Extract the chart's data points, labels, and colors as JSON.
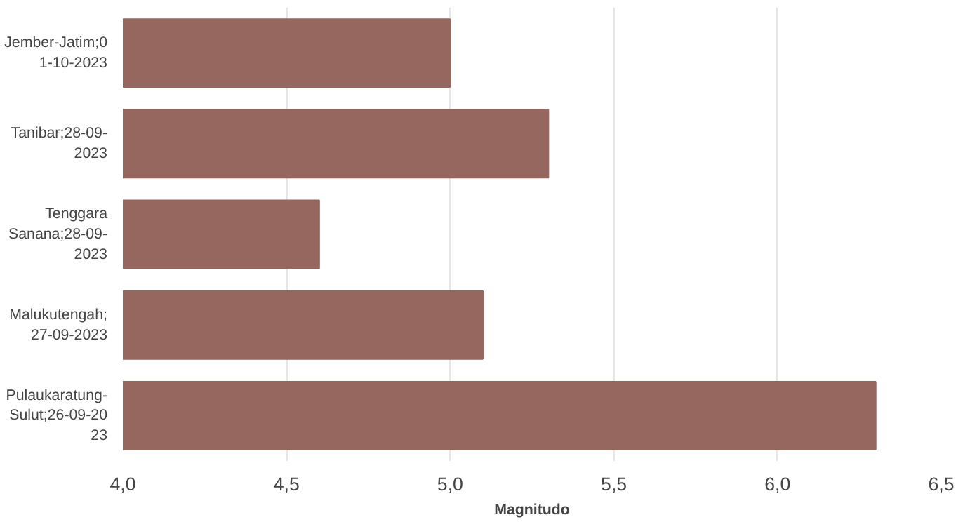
{
  "chart_data": {
    "type": "bar",
    "orientation": "horizontal",
    "xlabel": "Magnitudo",
    "categories": [
      "Jember-Jatim;0\n1-10-2023",
      "Tanibar;28-09-\n2023",
      "Tenggara\nSanana;28-09-\n2023",
      "Malukutengah;\n27-09-2023",
      "Pulaukaratung-\nSulut;26-09-20\n23"
    ],
    "values": [
      5.0,
      5.3,
      4.6,
      5.1,
      6.3
    ],
    "color": "#96675f",
    "xlim": [
      4.0,
      6.5
    ],
    "xticks": [
      {
        "value": 4.0,
        "label": "4,0"
      },
      {
        "value": 4.5,
        "label": "4,5"
      },
      {
        "value": 5.0,
        "label": "5,0"
      },
      {
        "value": 5.5,
        "label": "5,5"
      },
      {
        "value": 6.0,
        "label": "6,0"
      },
      {
        "value": 6.5,
        "label": "6,5"
      }
    ],
    "grid": "x"
  }
}
